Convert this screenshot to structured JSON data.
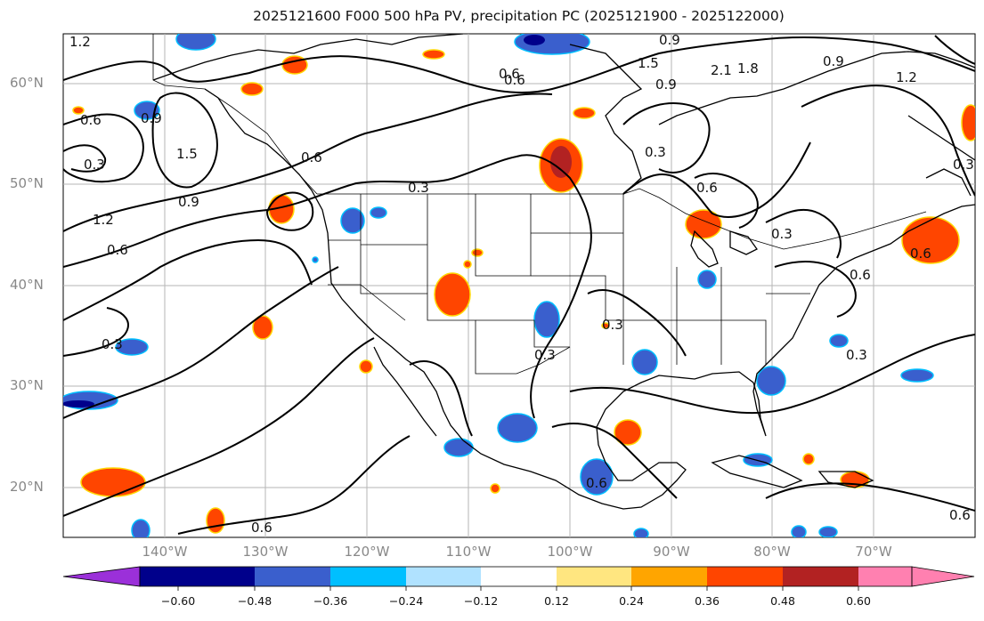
{
  "title": "2025121600 F000 500 hPa PV, precipitation PC (2025121900 - 2025122000)",
  "map": {
    "projection": "cylindrical",
    "lon_range": [
      -150,
      -60
    ],
    "lat_range": [
      15,
      65
    ],
    "gridlines": true,
    "lat_labels": [
      "60°N",
      "50°N",
      "40°N",
      "30°N",
      "20°N"
    ],
    "lon_labels": [
      "140°W",
      "130°W",
      "120°W",
      "110°W",
      "100°W",
      "90°W",
      "80°W",
      "70°W"
    ],
    "contour_labels": [
      "1.2",
      "0.6",
      "0.9",
      "0.3",
      "1.5",
      "0.6",
      "0.9",
      "0.3",
      "1.2",
      "0.6",
      "0.3",
      "0.6",
      "0.6",
      "0.9",
      "0.3",
      "1.5",
      "1.8",
      "2.1",
      "0.9",
      "1.2",
      "0.3",
      "0.6",
      "0.3",
      "0.6",
      "0.6",
      "0.3",
      "0.6",
      "0.9",
      "0.3",
      "0.6",
      "0.6",
      "0.3"
    ]
  },
  "colorbar": {
    "ticks": [
      "−0.60",
      "−0.48",
      "−0.36",
      "−0.24",
      "−0.12",
      "0.12",
      "0.24",
      "0.36",
      "0.48",
      "0.60"
    ],
    "colors": [
      "#9b30d9",
      "#00008b",
      "#3a5fcd",
      "#00bfff",
      "#b0e2ff",
      "#ffffff",
      "#ffe680",
      "#ffa500",
      "#ff4500",
      "#b22222",
      "#ff80b0"
    ]
  }
}
